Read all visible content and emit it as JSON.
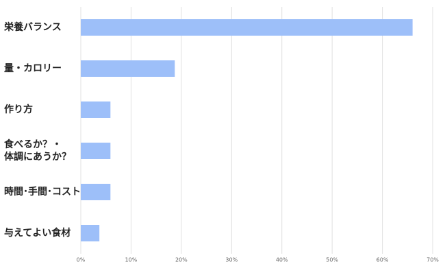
{
  "chart_data": {
    "type": "hbar",
    "categories": [
      "栄養バランス",
      "量・カロリー",
      "作り方",
      "食べるか？・\n体調にあうか？",
      "時間･手間･コスト",
      "与えてよい食材"
    ],
    "values": [
      66,
      18.7,
      5.9,
      5.9,
      5.9,
      3.7
    ],
    "color": "#9dbff9",
    "xlim": [
      0,
      70
    ],
    "xticks": [
      {
        "value": 0,
        "label": "0%"
      },
      {
        "value": 10,
        "label": "10%"
      },
      {
        "value": 20,
        "label": "20%"
      },
      {
        "value": 30,
        "label": "30%"
      },
      {
        "value": 40,
        "label": "40%"
      },
      {
        "value": 50,
        "label": "50%"
      },
      {
        "value": 60,
        "label": "60%"
      },
      {
        "value": 70,
        "label": "70%"
      }
    ],
    "grid": true
  }
}
